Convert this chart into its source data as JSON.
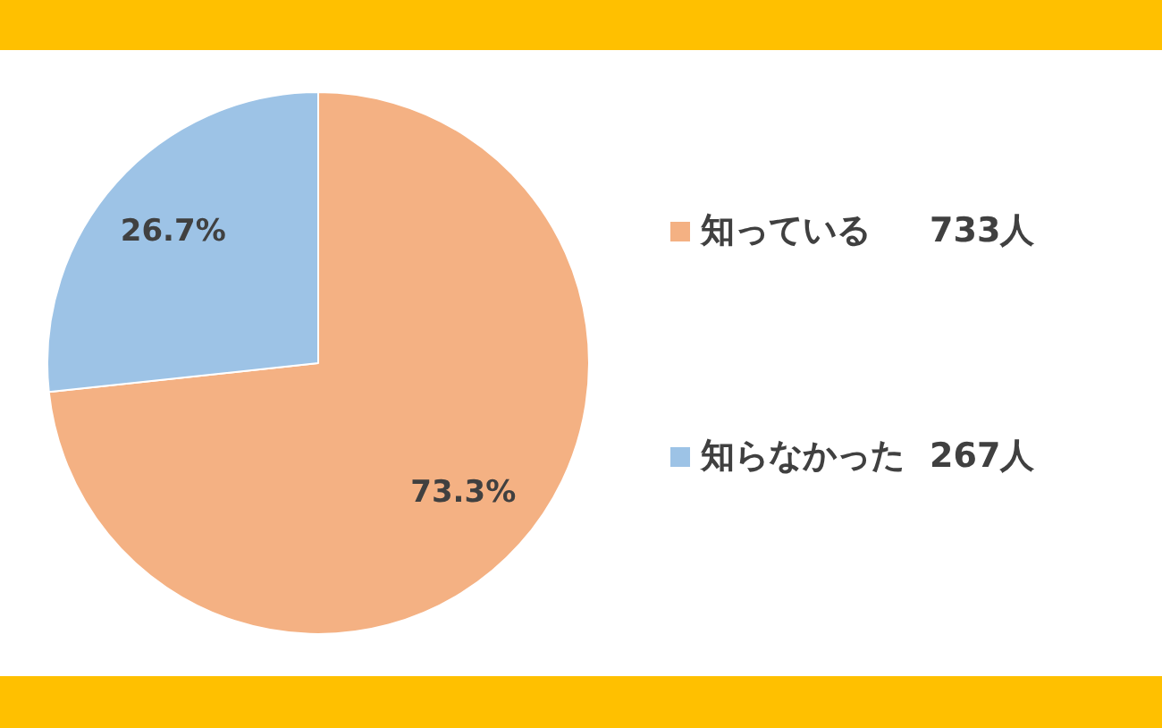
{
  "chart_data": {
    "type": "pie",
    "categories": [
      "知っている",
      "知らなかった"
    ],
    "values": [
      73.3,
      26.7
    ],
    "colors": [
      "#f4b183",
      "#9dc3e6"
    ],
    "value_labels": [
      "73.3%",
      "26.7%"
    ],
    "annotations": [
      "733人",
      "267人"
    ],
    "legend": "right"
  }
}
